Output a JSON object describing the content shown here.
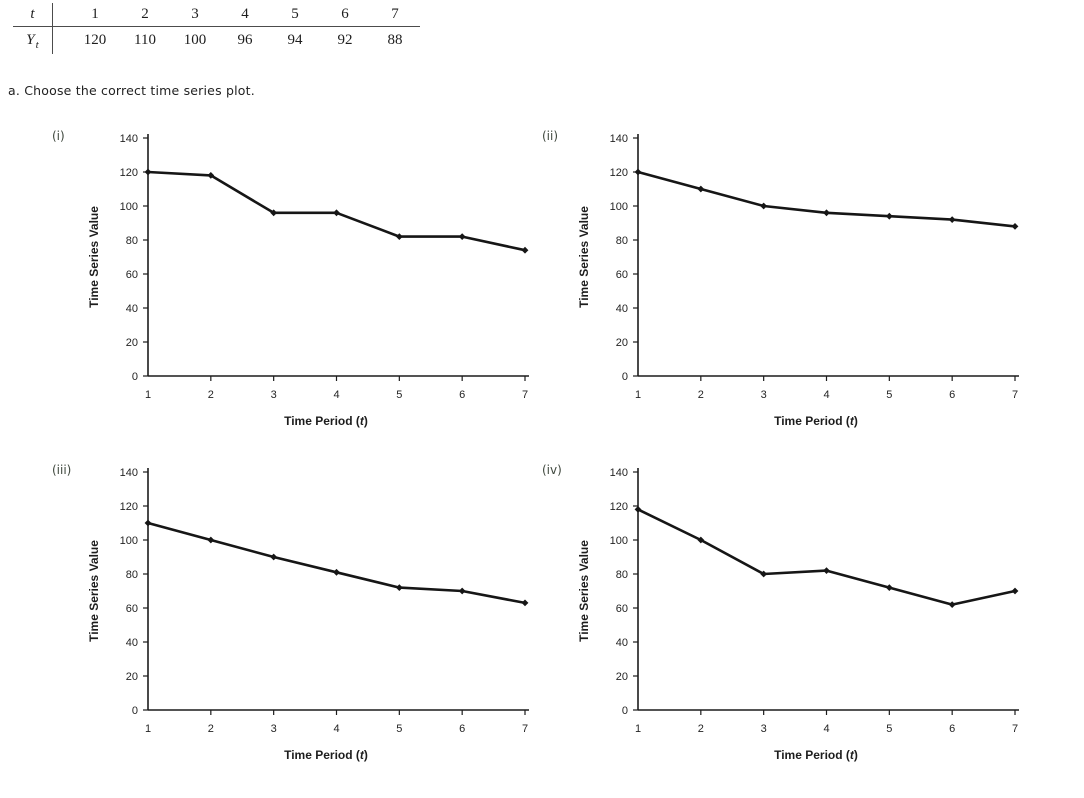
{
  "page": {
    "background": "#ffffff",
    "text_color": "#222222",
    "line_color": "#161616"
  },
  "data_table": {
    "header_row_label": "t",
    "value_row_label_base": "Y",
    "value_row_label_sub": "t",
    "t_values": [
      "1",
      "2",
      "3",
      "4",
      "5",
      "6",
      "7"
    ],
    "y_values": [
      "120",
      "110",
      "100",
      "96",
      "94",
      "92",
      "88"
    ]
  },
  "question": {
    "text": "a. Choose the correct time series plot."
  },
  "chart_common": {
    "ylabel": "Time Series Value",
    "xlabel": "Time Period (t)",
    "xlabel_prefix": "Time Period (",
    "xlabel_italic": "t",
    "xlabel_suffix": ")",
    "yticks": [
      0,
      20,
      40,
      60,
      80,
      100,
      120,
      140
    ],
    "xticks": [
      1,
      2,
      3,
      4,
      5,
      6,
      7
    ],
    "ylim": [
      0,
      140
    ],
    "grid": false,
    "legend": false,
    "marker": "diamond",
    "line_color": "#161616"
  },
  "chart_data": [
    {
      "id": "i",
      "label": "(i)",
      "type": "line",
      "xlabel": "Time Period (t)",
      "ylabel": "Time Series Value",
      "x": [
        1,
        2,
        3,
        4,
        5,
        6,
        7
      ],
      "values": [
        120,
        118,
        96,
        96,
        82,
        82,
        74
      ],
      "ylim": [
        0,
        140
      ],
      "yticks": [
        0,
        20,
        40,
        60,
        80,
        100,
        120,
        140
      ],
      "grid": false,
      "legend": false,
      "marker": "diamond",
      "line_color": "#161616"
    },
    {
      "id": "ii",
      "label": "(ii)",
      "type": "line",
      "xlabel": "Time Period (t)",
      "ylabel": "Time Series Value",
      "x": [
        1,
        2,
        3,
        4,
        5,
        6,
        7
      ],
      "values": [
        120,
        110,
        100,
        96,
        94,
        92,
        88
      ],
      "ylim": [
        0,
        140
      ],
      "yticks": [
        0,
        20,
        40,
        60,
        80,
        100,
        120,
        140
      ],
      "grid": false,
      "legend": false,
      "marker": "diamond",
      "line_color": "#161616"
    },
    {
      "id": "iii",
      "label": "(iii)",
      "type": "line",
      "xlabel": "Time Period (t)",
      "ylabel": "Time Series Value",
      "x": [
        1,
        2,
        3,
        4,
        5,
        6,
        7
      ],
      "values": [
        110,
        100,
        90,
        81,
        72,
        70,
        63
      ],
      "ylim": [
        0,
        140
      ],
      "yticks": [
        0,
        20,
        40,
        60,
        80,
        100,
        120,
        140
      ],
      "grid": false,
      "legend": false,
      "marker": "diamond",
      "line_color": "#161616"
    },
    {
      "id": "iv",
      "label": "(iv)",
      "type": "line",
      "xlabel": "Time Period (t)",
      "ylabel": "Time Series Value",
      "x": [
        1,
        2,
        3,
        4,
        5,
        6,
        7
      ],
      "values": [
        118,
        100,
        80,
        82,
        72,
        62,
        70
      ],
      "ylim": [
        0,
        140
      ],
      "yticks": [
        0,
        20,
        40,
        60,
        80,
        100,
        120,
        140
      ],
      "grid": false,
      "legend": false,
      "marker": "diamond",
      "line_color": "#161616"
    }
  ]
}
